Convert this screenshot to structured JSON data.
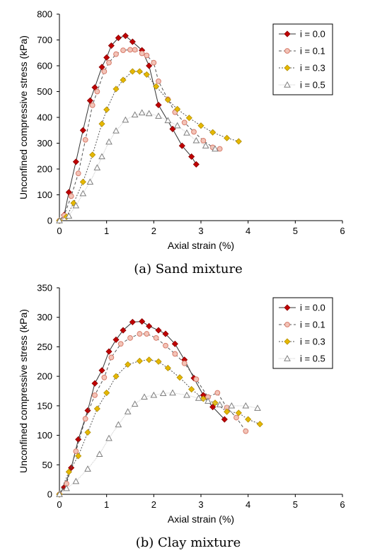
{
  "chart_data": [
    {
      "type": "line",
      "caption": "(a) Sand mixture",
      "xlabel": "Axial strain (%)",
      "ylabel": "Unconfined compressive stress (kPa)",
      "xlim": [
        0,
        6
      ],
      "ylim": [
        0,
        800
      ],
      "xticks": [
        "0",
        "1",
        "2",
        "3",
        "4",
        "5",
        "6"
      ],
      "yticks": [
        "0",
        "100",
        "200",
        "300",
        "400",
        "500",
        "600",
        "700",
        "800"
      ],
      "legend_position": "top-right",
      "series": [
        {
          "name": "i = 0.0",
          "color": "#c00000",
          "marker": "diamond",
          "x": [
            0,
            0.1,
            0.2,
            0.35,
            0.5,
            0.65,
            0.75,
            0.9,
            1.0,
            1.1,
            1.25,
            1.4,
            1.55,
            1.75,
            1.9,
            2.1,
            2.4,
            2.6,
            2.8,
            2.9
          ],
          "y": [
            0,
            22,
            110,
            228,
            350,
            465,
            516,
            595,
            632,
            678,
            708,
            716,
            693,
            660,
            600,
            448,
            355,
            290,
            248,
            218
          ]
        },
        {
          "name": "i = 0.1",
          "color": "#d87b6a",
          "marker": "circle",
          "x": [
            0,
            0.1,
            0.25,
            0.4,
            0.55,
            0.7,
            0.8,
            0.95,
            1.05,
            1.2,
            1.35,
            1.5,
            1.6,
            1.75,
            1.85,
            2.0,
            2.1,
            2.3,
            2.45,
            2.65,
            2.85,
            3.05,
            3.25,
            3.4
          ],
          "y": [
            0,
            20,
            95,
            183,
            313,
            447,
            500,
            578,
            612,
            645,
            660,
            662,
            662,
            648,
            640,
            612,
            540,
            470,
            420,
            380,
            344,
            310,
            284,
            278
          ]
        },
        {
          "name": "i = 0.3",
          "color": "#e6b800",
          "marker": "diamond",
          "x": [
            0,
            0.15,
            0.3,
            0.5,
            0.7,
            0.9,
            1.0,
            1.2,
            1.35,
            1.55,
            1.7,
            1.85,
            2.05,
            2.3,
            2.5,
            2.75,
            3.0,
            3.25,
            3.55,
            3.8
          ],
          "y": [
            0,
            15,
            68,
            150,
            255,
            375,
            430,
            510,
            545,
            578,
            578,
            566,
            520,
            468,
            432,
            398,
            368,
            342,
            320,
            307
          ]
        },
        {
          "name": "i = 0.5",
          "color": "#999999",
          "marker": "triangle",
          "x": [
            0,
            0.2,
            0.35,
            0.5,
            0.65,
            0.8,
            0.9,
            1.05,
            1.2,
            1.4,
            1.6,
            1.75,
            1.9,
            2.1,
            2.3,
            2.5,
            2.7,
            2.9,
            3.1,
            3.3
          ],
          "y": [
            0,
            18,
            58,
            105,
            150,
            205,
            248,
            305,
            348,
            390,
            410,
            418,
            415,
            405,
            388,
            368,
            340,
            310,
            290,
            278
          ]
        }
      ]
    },
    {
      "type": "line",
      "caption": "(b) Clay mixture",
      "xlabel": "Axial strain (%)",
      "ylabel": "Unconfined compressive stress (kPa)",
      "xlim": [
        0,
        6
      ],
      "ylim": [
        0,
        350
      ],
      "xticks": [
        "0",
        "1",
        "2",
        "3",
        "4",
        "5",
        "6"
      ],
      "yticks": [
        "0",
        "50",
        "100",
        "150",
        "200",
        "250",
        "300",
        "350"
      ],
      "legend_position": "top-right",
      "series": [
        {
          "name": "i = 0.0",
          "color": "#c00000",
          "marker": "diamond",
          "x": [
            0,
            0.1,
            0.25,
            0.4,
            0.6,
            0.75,
            0.9,
            1.05,
            1.2,
            1.35,
            1.55,
            1.75,
            1.9,
            2.1,
            2.25,
            2.45,
            2.65,
            2.85,
            3.05,
            3.25,
            3.5
          ],
          "y": [
            0,
            12,
            45,
            93,
            142,
            188,
            210,
            242,
            262,
            278,
            292,
            293,
            285,
            278,
            272,
            255,
            228,
            197,
            168,
            148,
            127
          ]
        },
        {
          "name": "i = 0.1",
          "color": "#d87b6a",
          "marker": "circle",
          "x": [
            0,
            0.15,
            0.35,
            0.55,
            0.75,
            0.95,
            1.1,
            1.3,
            1.5,
            1.7,
            1.85,
            2.05,
            2.25,
            2.45,
            2.65,
            2.9,
            3.15,
            3.35,
            3.55,
            3.75,
            3.95
          ],
          "y": [
            0,
            18,
            73,
            128,
            168,
            198,
            232,
            255,
            265,
            272,
            272,
            265,
            252,
            238,
            222,
            195,
            165,
            172,
            147,
            130,
            107
          ]
        },
        {
          "name": "i = 0.3",
          "color": "#e6b800",
          "marker": "diamond",
          "x": [
            0,
            0.2,
            0.4,
            0.6,
            0.8,
            1.0,
            1.2,
            1.45,
            1.7,
            1.9,
            2.1,
            2.3,
            2.55,
            2.8,
            3.05,
            3.3,
            3.55,
            3.8,
            4.0,
            4.25
          ],
          "y": [
            0,
            38,
            65,
            105,
            145,
            172,
            200,
            220,
            226,
            228,
            225,
            214,
            198,
            178,
            162,
            155,
            140,
            138,
            127,
            119
          ]
        },
        {
          "name": "i = 0.5",
          "color": "#999999",
          "marker": "triangle",
          "x": [
            0,
            0.15,
            0.35,
            0.6,
            0.85,
            1.05,
            1.25,
            1.45,
            1.6,
            1.8,
            2.0,
            2.2,
            2.4,
            2.7,
            2.95,
            3.15,
            3.4,
            3.65,
            3.95,
            4.2
          ],
          "y": [
            0,
            10,
            22,
            43,
            68,
            95,
            118,
            140,
            153,
            165,
            168,
            171,
            172,
            168,
            163,
            158,
            152,
            150,
            150,
            146
          ]
        }
      ]
    }
  ]
}
